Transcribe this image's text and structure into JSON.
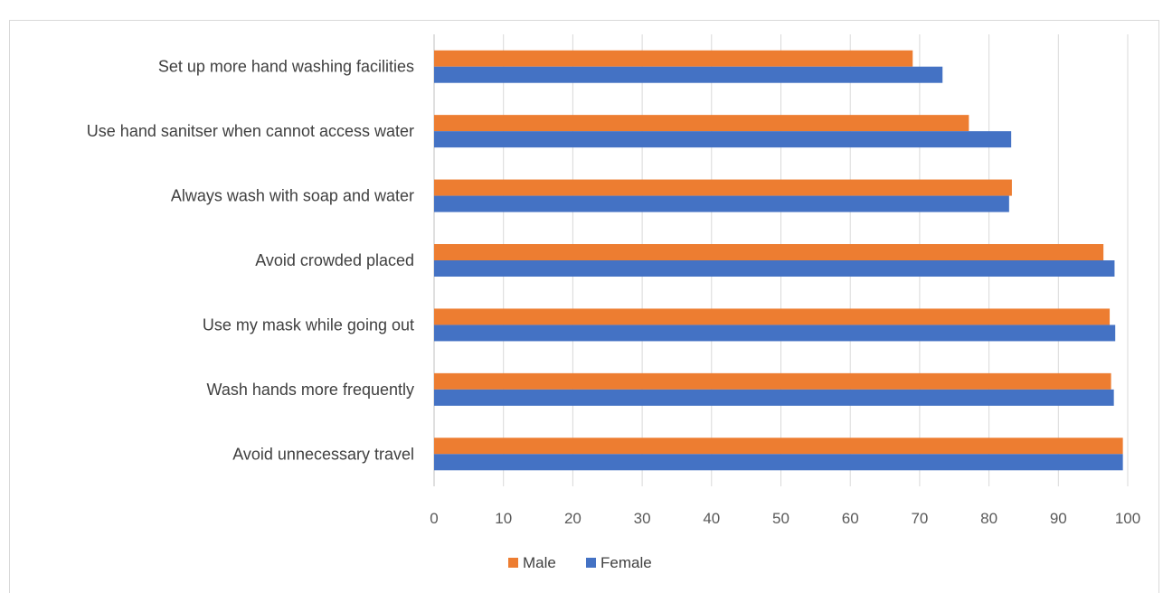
{
  "header": {
    "title": ""
  },
  "chart_data": {
    "type": "bar",
    "orientation": "horizontal",
    "title": "",
    "xlabel": "",
    "ylabel": "",
    "categories": [
      "Avoid unnecessary travel",
      "Wash hands more frequently",
      "Use my mask while going out",
      "Avoid crowded placed",
      "Always wash with soap and water",
      "Use hand sanitser when cannot access water",
      "Set up more hand washing facilities"
    ],
    "series": [
      {
        "name": "Male",
        "color": "#ED7D31",
        "values": [
          99.3,
          97.6,
          97.4,
          96.5,
          83.3,
          77.1,
          69.0
        ]
      },
      {
        "name": "Female",
        "color": "#4472C4",
        "values": [
          99.3,
          98.0,
          98.2,
          98.1,
          82.9,
          83.2,
          73.3
        ]
      }
    ],
    "xlim": [
      0,
      100
    ],
    "xticks": [
      0,
      10,
      20,
      30,
      40,
      50,
      60,
      70,
      80,
      90,
      100
    ],
    "grid": true,
    "legend": "bottom"
  }
}
